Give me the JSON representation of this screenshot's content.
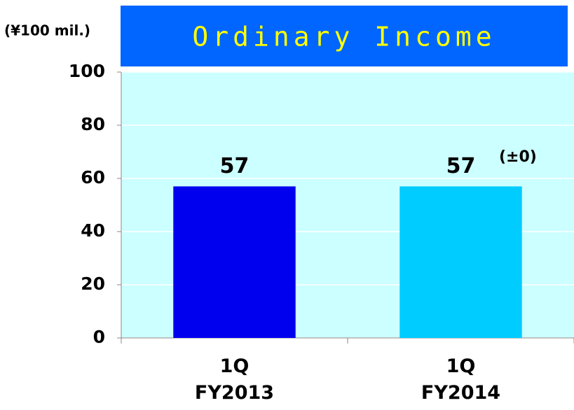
{
  "chart_data": {
    "type": "bar",
    "title": "Ordinary Income",
    "y_axis_label": "(¥100 mil.)",
    "categories": [
      "1Q\nFY2013",
      "1Q\nFY2014"
    ],
    "values": [
      57,
      57
    ],
    "colors": [
      "#0000ee",
      "#00ccff"
    ],
    "annotation": "(±0)",
    "ylim": [
      0,
      100
    ],
    "yticks": [
      0,
      20,
      40,
      60,
      80,
      100
    ],
    "grid": true
  }
}
